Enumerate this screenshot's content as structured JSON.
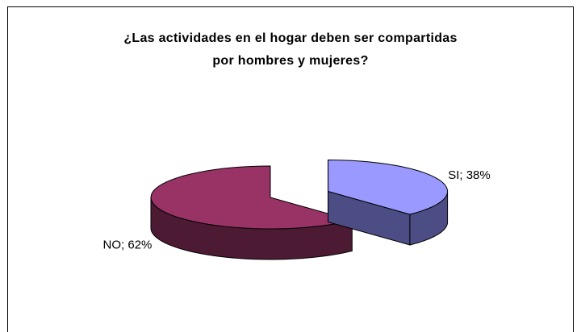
{
  "chart_data": {
    "type": "pie",
    "title": "¿Las actividades en el hogar deben ser compartidas por hombres y mujeres?",
    "categories": [
      "SI",
      "NO"
    ],
    "values": [
      38,
      62
    ],
    "value_labels": [
      "SI; 38%",
      "NO; 62%"
    ],
    "colors": [
      "#9999ff",
      "#993366"
    ],
    "side_colors": [
      "#4d4d85",
      "#4d1a33"
    ]
  }
}
